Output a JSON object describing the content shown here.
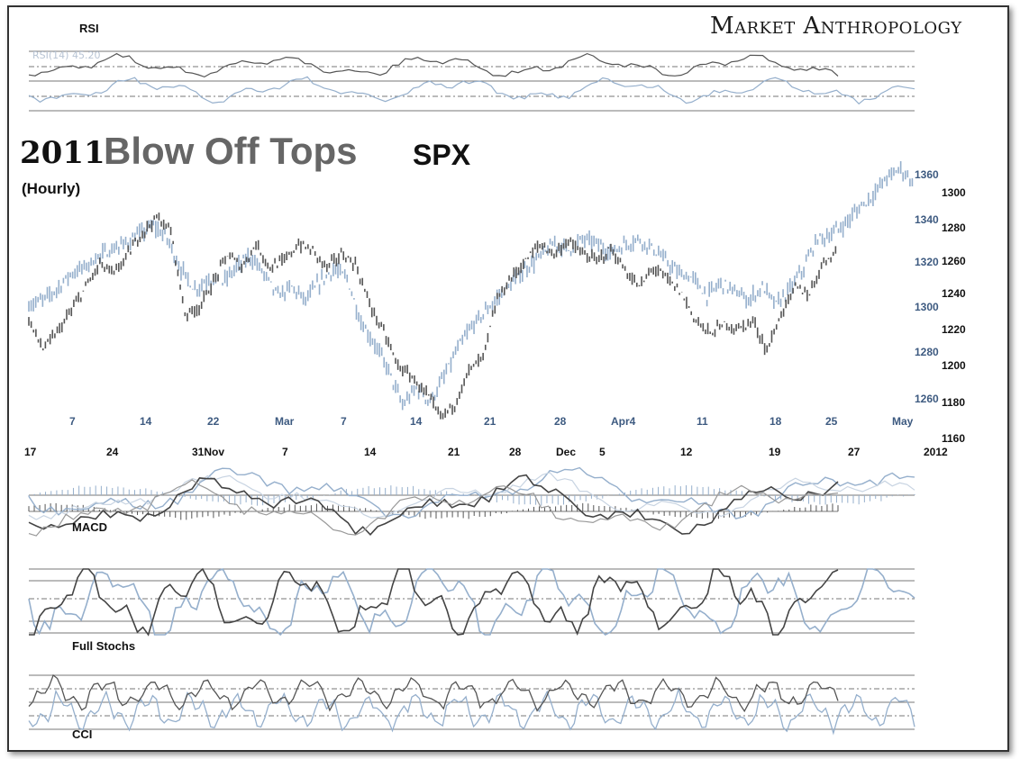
{
  "header": {
    "brand": "Market Anthropology",
    "title_year": "2011",
    "title_main": "Blow Off Tops",
    "title_symbol": "SPX",
    "subtitle": "(Hourly)"
  },
  "panels": {
    "rsi": "RSI",
    "rsi_setting": "RSI(14) 45.20",
    "macd": "MACD",
    "stochs": "Full Stochs",
    "cci": "CCI"
  },
  "colors": {
    "series_2011": "#95afcc",
    "series_current": "#555555",
    "axis_blue": "#3d5a80",
    "axis_black": "#111111"
  },
  "chart_data": {
    "type": "line",
    "title": "2011 Blow Off Tops SPX",
    "subtitle": "(Hourly)",
    "grid": false,
    "legend": "none",
    "x_top": [
      "7",
      "14",
      "22",
      "Mar",
      "7",
      "14",
      "21",
      "28",
      "Apr4",
      "11",
      "18",
      "25",
      "May"
    ],
    "x_bottom": [
      "17",
      "24",
      "31Nov",
      "7",
      "14",
      "21",
      "28",
      "Dec",
      "5",
      "12",
      "19",
      "27",
      "2012"
    ],
    "y_right_blue": [
      "1360",
      "1340",
      "1320",
      "1300",
      "1280",
      "1260"
    ],
    "y_right_black": [
      "1300",
      "1280",
      "1260",
      "1240",
      "1220",
      "1200",
      "1180",
      "1160"
    ],
    "ylim_blue": [
      1250,
      1375
    ],
    "ylim_black": [
      1155,
      1320
    ],
    "series": [
      {
        "values": [
          1308,
          1310,
          1315,
          1322,
          1325,
          1330,
          1333,
          1336,
          1340,
          1344,
          1338,
          1324,
          1315,
          1320,
          1318,
          1325,
          1330,
          1322,
          1312,
          1316,
          1310,
          1318,
          1324,
          1320,
          1300,
          1290,
          1278,
          1262,
          1270,
          1264,
          1275,
          1288,
          1298,
          1305,
          1312,
          1318,
          1325,
          1330,
          1336,
          1333,
          1338,
          1336,
          1332,
          1335,
          1338,
          1334,
          1328,
          1322,
          1320,
          1312,
          1318,
          1314,
          1310,
          1316,
          1308,
          1315,
          1325,
          1338,
          1340,
          1345,
          1352,
          1358,
          1366,
          1370,
          1363
        ]
      },
      {
        "values": [
          1222,
          1205,
          1215,
          1228,
          1242,
          1256,
          1250,
          1262,
          1275,
          1284,
          1276,
          1226,
          1230,
          1245,
          1262,
          1254,
          1268,
          1254,
          1258,
          1268,
          1264,
          1254,
          1262,
          1256,
          1232,
          1215,
          1195,
          1188,
          1178,
          1164,
          1172,
          1192,
          1200,
          1235,
          1248,
          1258,
          1268,
          1262,
          1270,
          1262,
          1258,
          1265,
          1252,
          1242,
          1254,
          1247,
          1238,
          1222,
          1214,
          1220,
          1217,
          1222,
          1204,
          1226,
          1242,
          1238,
          1258,
          1264
        ]
      }
    ]
  }
}
